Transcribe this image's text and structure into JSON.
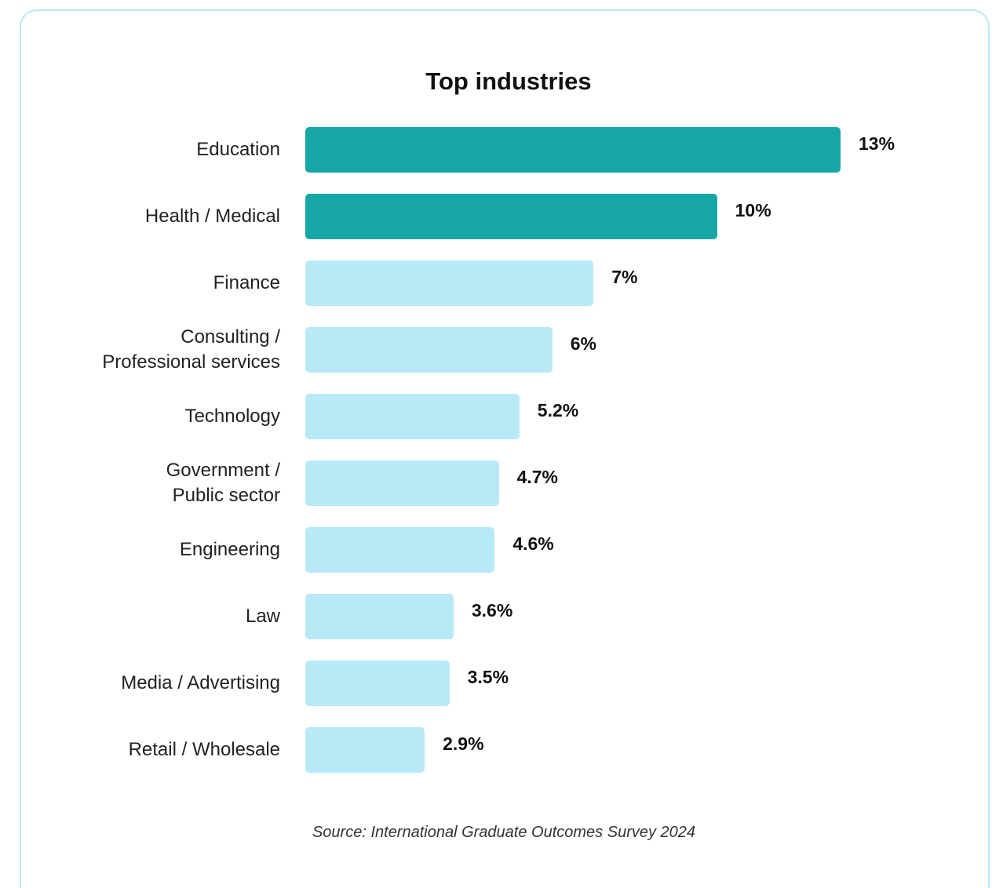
{
  "chart_data": {
    "type": "bar",
    "orientation": "horizontal",
    "title": "Top industries",
    "xlabel": "",
    "ylabel": "",
    "categories": [
      "Education",
      "Health / Medical",
      "Finance",
      "Consulting / Professional services",
      "Technology",
      "Government / Public sector",
      "Engineering",
      "Law",
      "Media / Advertising",
      "Retail / Wholesale"
    ],
    "category_display": [
      [
        "Education"
      ],
      [
        "Health / Medical"
      ],
      [
        "Finance"
      ],
      [
        "Consulting /",
        "Professional services"
      ],
      [
        "Technology"
      ],
      [
        "Government /",
        "Public sector"
      ],
      [
        "Engineering"
      ],
      [
        "Law"
      ],
      [
        "Media / Advertising"
      ],
      [
        "Retail / Wholesale"
      ]
    ],
    "values": [
      13,
      10,
      7,
      6,
      5.2,
      4.7,
      4.6,
      3.6,
      3.5,
      2.9
    ],
    "value_labels": [
      "13%",
      "10%",
      "7%",
      "6%",
      "5.2%",
      "4.7%",
      "4.6%",
      "3.6%",
      "3.5%",
      "2.9%"
    ],
    "xlim": [
      0,
      13
    ],
    "grid": false,
    "legend": "none",
    "colors": {
      "highlight": "#17a6a6",
      "default": "#b8e9f6"
    },
    "highlighted": [
      true,
      true,
      false,
      false,
      false,
      false,
      false,
      false,
      false,
      false
    ]
  },
  "source": "Source: International Graduate Outcomes Survey 2024"
}
